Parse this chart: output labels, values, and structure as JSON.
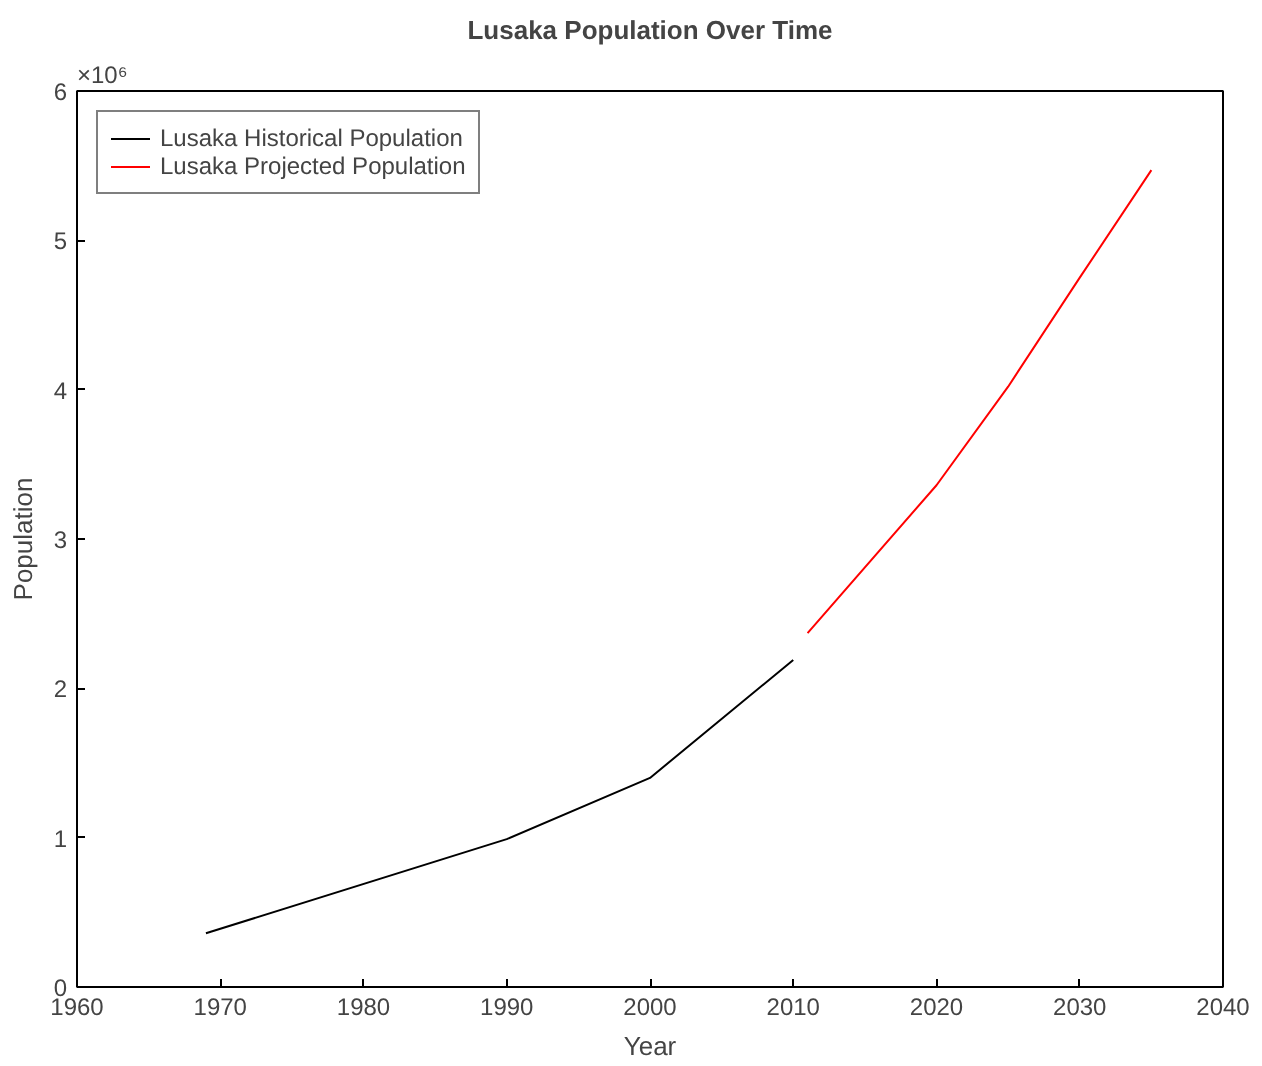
{
  "chart_data": {
    "type": "line",
    "title": "Lusaka Population Over Time",
    "xlabel": "Year",
    "ylabel": "Population",
    "annotations": [
      "×10⁶"
    ],
    "series": [
      {
        "name": "Lusaka Historical Population",
        "color": "#000000",
        "x": [
          1969,
          1990,
          2000,
          2010
        ],
        "values": [
          0.36,
          0.99,
          1.4,
          2.19
        ]
      },
      {
        "name": "Lusaka Projected Population",
        "color": "#ff0000",
        "x": [
          2011,
          2020,
          2025,
          2030,
          2035
        ],
        "values": [
          2.37,
          3.36,
          4.02,
          4.75,
          5.47
        ]
      }
    ],
    "xlim": [
      1960,
      2040
    ],
    "xticks": [
      1960,
      1970,
      1980,
      1990,
      2000,
      2010,
      2020,
      2030,
      2040
    ],
    "ylim": [
      0,
      6
    ],
    "yticks": [
      0,
      1,
      2,
      3,
      4,
      5,
      6
    ],
    "grid": false,
    "legend": "top left",
    "marker": "none",
    "line_style": "solid"
  }
}
